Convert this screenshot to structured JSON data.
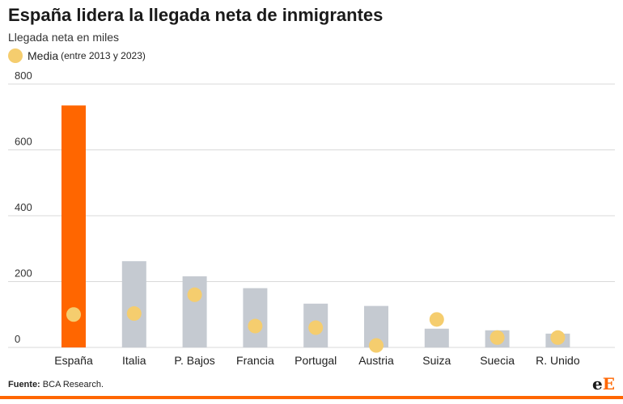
{
  "header": {
    "title": "España lidera la llegada neta de inmigrantes",
    "subtitle": "Llegada neta en miles"
  },
  "legend": {
    "label": "Media",
    "note": "(entre 2013 y 2023)"
  },
  "footer": {
    "source_label": "Fuente:",
    "source_text": "BCA Research.",
    "logo_e1": "e",
    "logo_e2": "E"
  },
  "colors": {
    "highlight": "#ff6600",
    "bar": "#c5cad1",
    "dot": "#f5cd6e",
    "grid": "#d9d9d9",
    "rule": "#ff6600"
  },
  "chart_data": {
    "type": "bar",
    "title": "España lidera la llegada neta de inmigrantes",
    "subtitle": "Llegada neta en miles",
    "categories": [
      "España",
      "Italia",
      "P. Bajos",
      "Francia",
      "Portugal",
      "Austria",
      "Suiza",
      "Suecia",
      "R. Unido"
    ],
    "series": [
      {
        "values": [
          735,
          262,
          216,
          180,
          133,
          126,
          57,
          52,
          42
        ]
      },
      {
        "name": "Media (entre 2013 y 2023)",
        "marker": "dot",
        "values": [
          100,
          103,
          160,
          65,
          60,
          6,
          85,
          30,
          30
        ]
      }
    ],
    "highlight_index": 0,
    "yticks": [
      0,
      200,
      400,
      600,
      800
    ],
    "ylim": [
      0,
      800
    ],
    "grid": true,
    "legend_position": "top-left"
  }
}
